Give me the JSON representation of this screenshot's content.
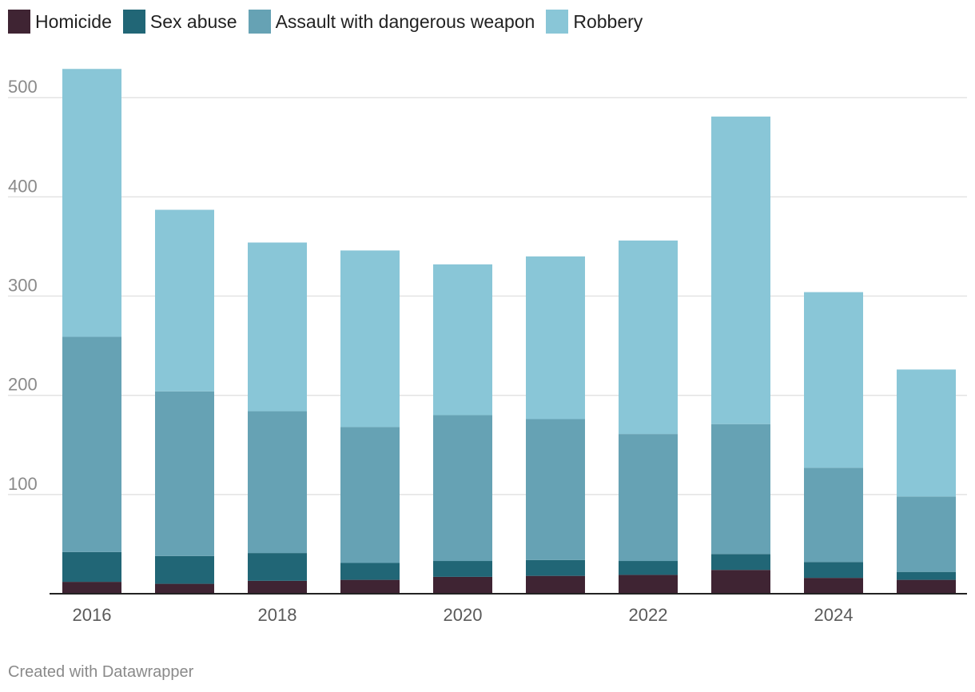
{
  "colors": {
    "homicide": "#3f2433",
    "sex_abuse": "#216676",
    "assault": "#66a2b4",
    "robbery": "#89c6d7",
    "grid": "#e3e3e3",
    "axis": "#222222"
  },
  "legend": {
    "items": [
      {
        "label": "Homicide",
        "color": "#3f2433"
      },
      {
        "label": "Sex abuse",
        "color": "#216676"
      },
      {
        "label": "Assault with dangerous weapon",
        "color": "#66a2b4"
      },
      {
        "label": "Robbery",
        "color": "#89c6d7"
      }
    ]
  },
  "footer": {
    "credit": "Created with Datawrapper"
  },
  "chart_data": {
    "type": "bar",
    "stacked": true,
    "title": "",
    "xlabel": "",
    "ylabel": "",
    "categories": [
      "2016",
      "2017",
      "2018",
      "2019",
      "2020",
      "2021",
      "2022",
      "2023",
      "2024",
      "2025"
    ],
    "x_tick_labels": [
      "2016",
      "",
      "2018",
      "",
      "2020",
      "",
      "2022",
      "",
      "2024",
      ""
    ],
    "y_ticks": [
      100,
      200,
      300,
      400,
      500
    ],
    "y_tick_labels": [
      "100",
      "200",
      "300",
      "400",
      "500"
    ],
    "ylim": [
      0,
      530
    ],
    "grid": true,
    "legend_position": "top-left",
    "series": [
      {
        "name": "Homicide",
        "color": "#3f2433",
        "values": [
          12,
          10,
          13,
          14,
          17,
          18,
          19,
          24,
          16,
          14
        ]
      },
      {
        "name": "Sex abuse",
        "color": "#216676",
        "values": [
          30,
          28,
          28,
          17,
          16,
          16,
          14,
          16,
          16,
          8
        ]
      },
      {
        "name": "Assault with dangerous weapon",
        "color": "#66a2b4",
        "values": [
          217,
          166,
          143,
          137,
          147,
          142,
          128,
          131,
          95,
          76
        ]
      },
      {
        "name": "Robbery",
        "color": "#89c6d7",
        "values": [
          270,
          183,
          170,
          178,
          152,
          164,
          195,
          310,
          177,
          128
        ]
      }
    ]
  }
}
